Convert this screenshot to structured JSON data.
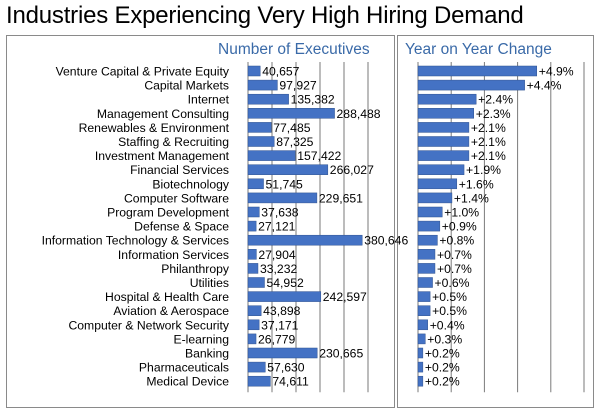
{
  "title": "Industries Experiencing Very High Hiring Demand",
  "chart_data": [
    {
      "type": "bar",
      "orientation": "horizontal",
      "title": "Number of Executives",
      "xlim": [
        0,
        400000
      ],
      "grid": true,
      "categories": [
        "Venture Capital & Private Equity",
        "Capital Markets",
        "Internet",
        "Management Consulting",
        "Renewables & Environment",
        "Staffing & Recruiting",
        "Investment Management",
        "Financial Services",
        "Biotechnology",
        "Computer Software",
        "Program Development",
        "Defense & Space",
        "Information Technology & Services",
        "Information Services",
        "Philanthropy",
        "Utilities",
        "Hospital & Health Care",
        "Aviation & Aerospace",
        "Computer & Network Security",
        "E-learning",
        "Banking",
        "Pharmaceuticals",
        "Medical Device"
      ],
      "values": [
        40657,
        97927,
        135382,
        288488,
        77485,
        87325,
        157422,
        266027,
        51745,
        229651,
        37638,
        27121,
        380646,
        27904,
        33232,
        54952,
        242597,
        43898,
        37171,
        26779,
        230665,
        57630,
        74611
      ],
      "value_labels": [
        "40,657",
        "97,927",
        "135,382",
        "288,488",
        "77,485",
        "87,325",
        "157,422",
        "266,027",
        "51,745",
        "229,651",
        "37,638",
        "27,121",
        "380,646",
        "27,904",
        "33,232",
        "54,952",
        "242,597",
        "43,898",
        "37,171",
        "26,779",
        "230,665",
        "57,630",
        "74,611"
      ]
    },
    {
      "type": "bar",
      "orientation": "horizontal",
      "title": "Year on Year Change",
      "xlim": [
        0,
        5.0
      ],
      "grid": true,
      "values": [
        4.9,
        4.4,
        2.4,
        2.3,
        2.1,
        2.1,
        2.1,
        1.9,
        1.6,
        1.4,
        1.0,
        0.9,
        0.8,
        0.7,
        0.7,
        0.6,
        0.5,
        0.5,
        0.4,
        0.3,
        0.2,
        0.2,
        0.2
      ],
      "value_labels": [
        "+4.9%",
        "+4.4%",
        "+2.4%",
        "+2.3%",
        "+2.1%",
        "+2.1%",
        "+2.1%",
        "+1.9%",
        "+1.6%",
        "+1.4%",
        "+1.0%",
        "+0.9%",
        "+0.8%",
        "+0.7%",
        "+0.7%",
        "+0.6%",
        "+0.5%",
        "+0.5%",
        "+0.4%",
        "+0.3%",
        "+0.2%",
        "+0.2%",
        "+0.2%"
      ]
    }
  ]
}
